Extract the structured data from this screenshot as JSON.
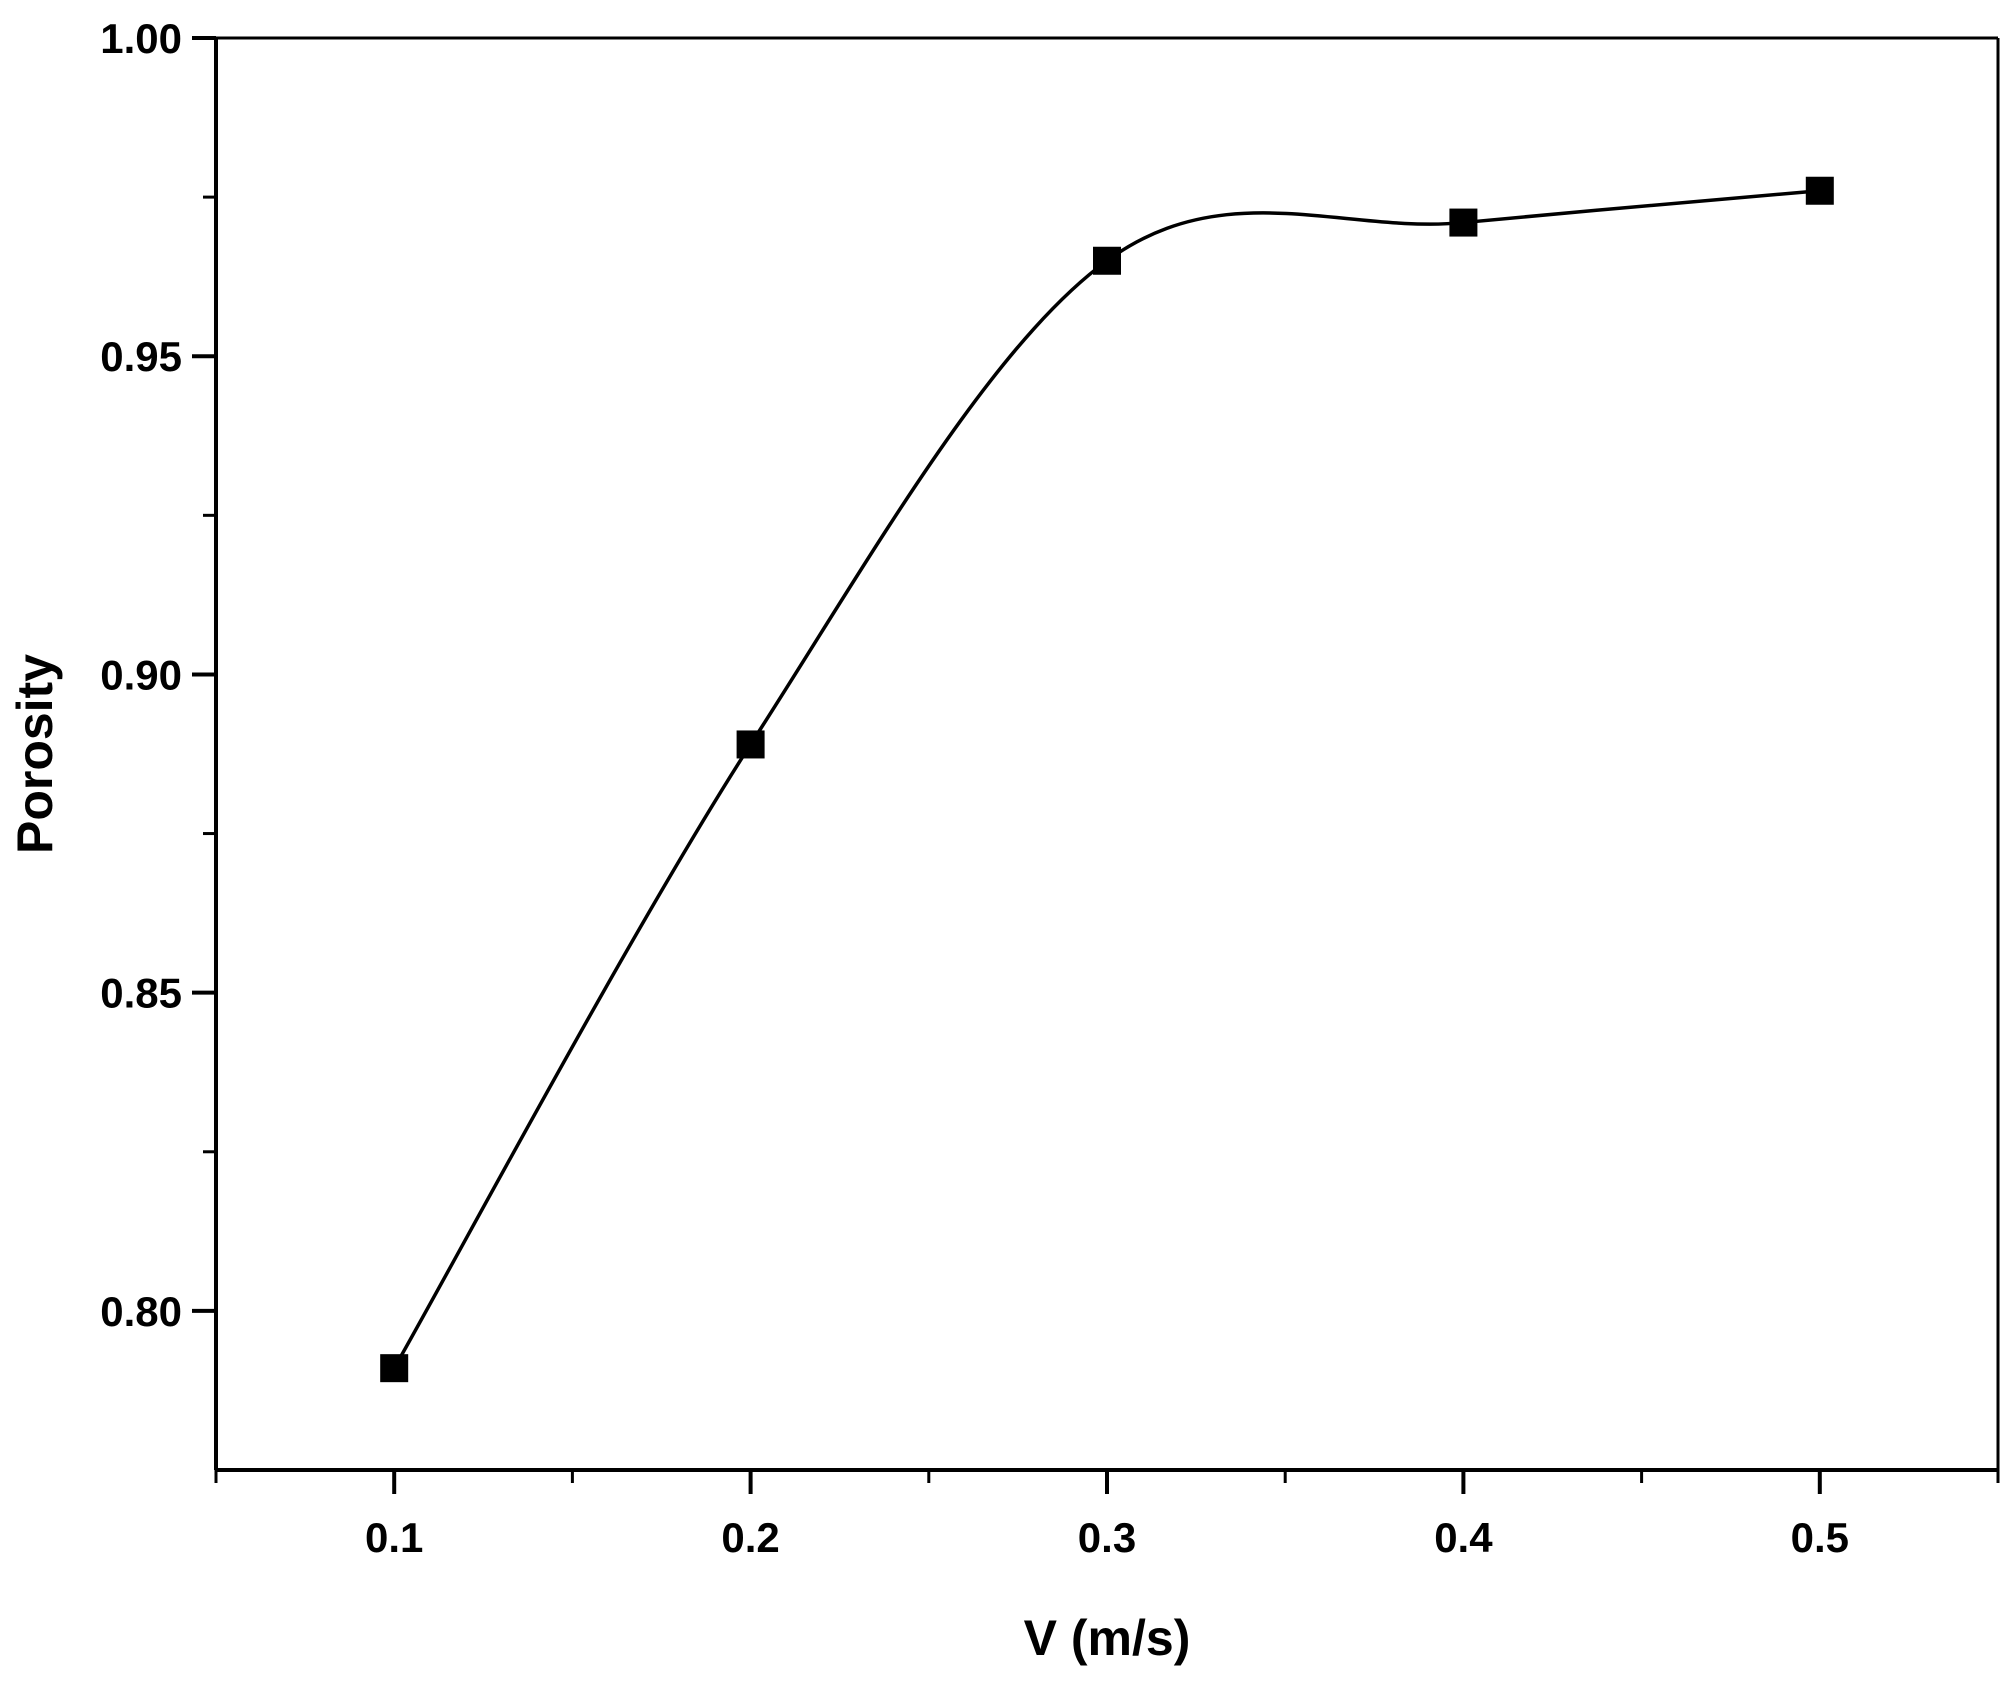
{
  "chart_data": {
    "type": "line",
    "title": "",
    "xlabel": "V (m/s)",
    "ylabel": "Porosity",
    "xlim": [
      0.05,
      0.55
    ],
    "ylim": [
      0.775,
      1.0
    ],
    "xticks": [
      {
        "value": 0.1,
        "label": "0.1"
      },
      {
        "value": 0.2,
        "label": "0.2"
      },
      {
        "value": 0.3,
        "label": "0.3"
      },
      {
        "value": 0.4,
        "label": "0.4"
      },
      {
        "value": 0.5,
        "label": "0.5"
      }
    ],
    "xminor": [
      0.05,
      0.15,
      0.25,
      0.35,
      0.45,
      0.55
    ],
    "yticks": [
      {
        "value": 0.8,
        "label": "0.80"
      },
      {
        "value": 0.85,
        "label": "0.85"
      },
      {
        "value": 0.9,
        "label": "0.90"
      },
      {
        "value": 0.95,
        "label": "0.95"
      },
      {
        "value": 1.0,
        "label": "1.00"
      }
    ],
    "yminor": [
      0.825,
      0.875,
      0.925,
      0.975
    ],
    "grid": false,
    "legend": "none",
    "series": [
      {
        "marker": "square",
        "color": "#000000",
        "x": [
          0.1,
          0.2,
          0.3,
          0.4,
          0.5
        ],
        "y": [
          0.791,
          0.889,
          0.965,
          0.971,
          0.976
        ]
      }
    ]
  }
}
